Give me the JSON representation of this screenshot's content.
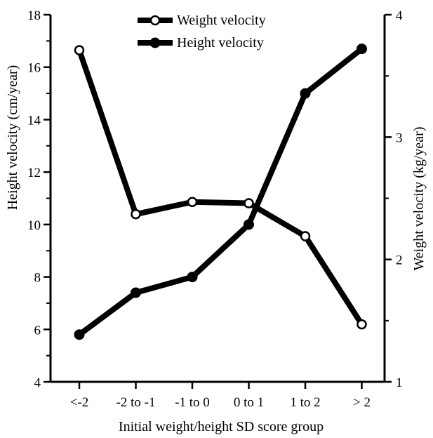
{
  "chart_data": {
    "type": "line",
    "categories": [
      "<-2",
      "-2 to -1",
      "-1 to 0",
      "0 to 1",
      "1 to 2",
      "> 2"
    ],
    "xlabel": "Initial weight/height SD score group",
    "ylabel_left": "Height velocity (cm/year)",
    "ylabel_right": "Weight velocity (kg/year)",
    "ylim_left": [
      4,
      18
    ],
    "yticks_left": [
      4,
      6,
      8,
      10,
      12,
      14,
      16,
      18
    ],
    "ylim_right": [
      1,
      4
    ],
    "yticks_right": [
      1,
      2,
      3,
      4
    ],
    "grid": false,
    "legend_position": "top-center",
    "series": [
      {
        "name": "Weight velocity",
        "axis": "right",
        "marker": "open-circle",
        "values": [
          3.71,
          2.37,
          2.47,
          2.46,
          2.19,
          1.47
        ]
      },
      {
        "name": "Height velocity",
        "axis": "left",
        "marker": "filled-circle",
        "values": [
          5.8,
          7.4,
          8.0,
          10.0,
          15.0,
          16.7
        ]
      }
    ]
  }
}
